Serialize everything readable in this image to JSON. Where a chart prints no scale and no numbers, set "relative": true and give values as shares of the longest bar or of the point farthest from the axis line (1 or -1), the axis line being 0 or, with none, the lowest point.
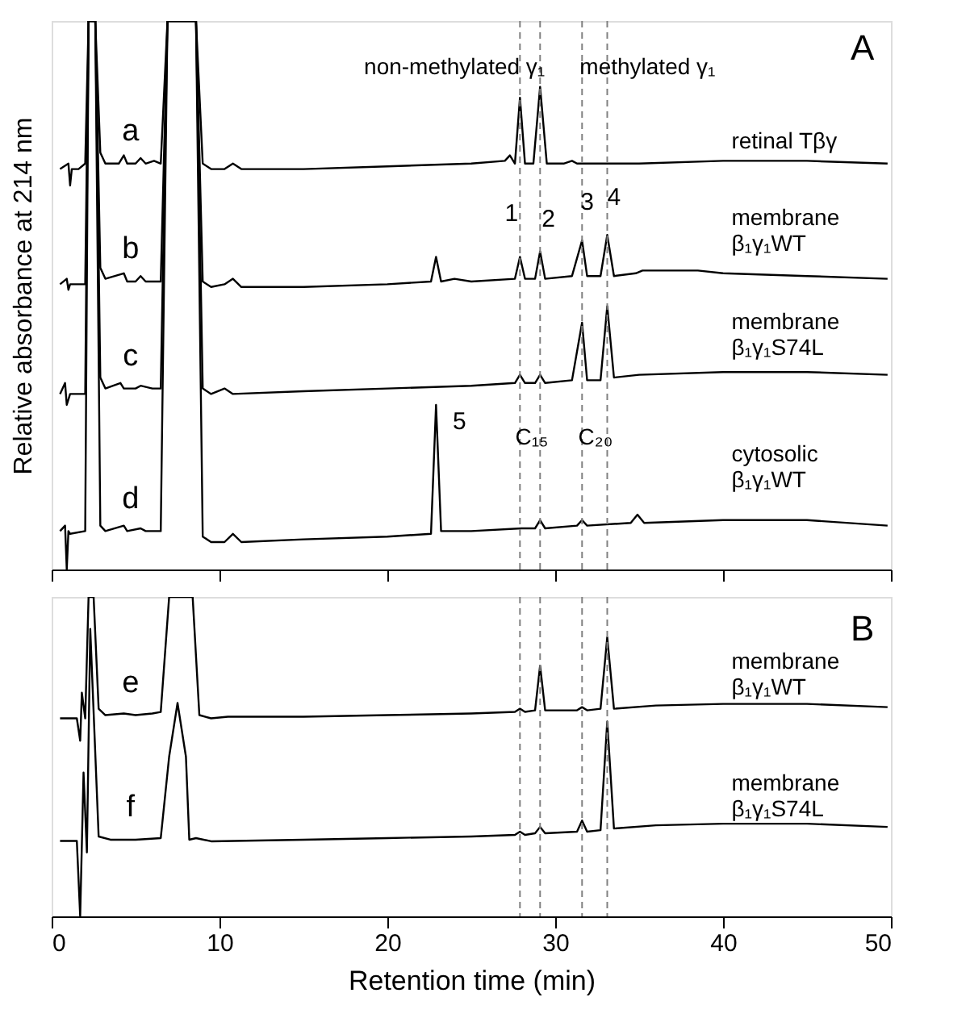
{
  "chart_data": [
    {
      "type": "line",
      "relative": true,
      "ylabel": "Relative absorbance at 214 nm",
      "xlim": [
        0,
        50
      ],
      "xticks": [
        0,
        10,
        20,
        30,
        40,
        50
      ],
      "tick_labels": false,
      "grid": false,
      "line_style": "solid",
      "series": [
        {
          "name": "a",
          "color": "#000000",
          "x": [
            0.5,
            1.0,
            1.1,
            1.2,
            1.6,
            2.0,
            2.2,
            2.6,
            2.9,
            3.2,
            4.0,
            4.3,
            4.5,
            5.0,
            5.3,
            5.6,
            6.1,
            6.5,
            6.9,
            8.6,
            9.0,
            9.5,
            10.3,
            10.8,
            11.3,
            15,
            20,
            25,
            27.0,
            27.3,
            27.6,
            27.9,
            28.2,
            28.7,
            29.1,
            29.5,
            30.5,
            31.0,
            31.3,
            35,
            40,
            45,
            49.8
          ],
          "values": [
            0.73,
            0.74,
            0.7,
            0.73,
            0.73,
            0.74,
            1,
            1,
            0.76,
            0.74,
            0.74,
            0.755,
            0.74,
            0.74,
            0.75,
            0.74,
            0.745,
            0.74,
            1,
            1,
            0.74,
            0.73,
            0.73,
            0.74,
            0.73,
            0.73,
            0.735,
            0.74,
            0.745,
            0.755,
            0.74,
            0.86,
            0.74,
            0.74,
            0.88,
            0.74,
            0.74,
            0.745,
            0.74,
            0.74,
            0.745,
            0.745,
            0.74
          ]
        },
        {
          "name": "b",
          "color": "#000000",
          "x": [
            0.5,
            0.9,
            1.0,
            1.1,
            2.0,
            2.2,
            2.6,
            2.9,
            3.2,
            4.3,
            4.5,
            5.0,
            5.3,
            5.6,
            6.5,
            6.9,
            8.6,
            9.0,
            9.5,
            10.3,
            10.8,
            11.3,
            15,
            20,
            22.6,
            22.9,
            23.2,
            24.0,
            25,
            27.6,
            27.9,
            28.2,
            28.8,
            29.1,
            29.4,
            31.0,
            31.6,
            31.9,
            32.7,
            33.1,
            33.5,
            34.8,
            35.2,
            36.3,
            38.5,
            40,
            45,
            49.8
          ],
          "values": [
            0.52,
            0.53,
            0.51,
            0.52,
            0.52,
            1,
            1,
            0.55,
            0.53,
            0.54,
            0.525,
            0.525,
            0.535,
            0.525,
            0.525,
            1,
            1,
            0.525,
            0.515,
            0.52,
            0.53,
            0.515,
            0.515,
            0.52,
            0.525,
            0.57,
            0.525,
            0.53,
            0.525,
            0.53,
            0.57,
            0.53,
            0.53,
            0.58,
            0.53,
            0.535,
            0.6,
            0.535,
            0.535,
            0.61,
            0.535,
            0.54,
            0.545,
            0.545,
            0.545,
            0.54,
            0.535,
            0.53
          ]
        },
        {
          "name": "c",
          "color": "#000000",
          "x": [
            0.5,
            0.8,
            0.9,
            1.1,
            2.0,
            2.2,
            2.6,
            2.9,
            3.2,
            4.1,
            4.3,
            5.0,
            5.3,
            6.0,
            6.5,
            6.9,
            8.6,
            9.0,
            9.5,
            10.3,
            10.8,
            15,
            20,
            25,
            27.6,
            27.9,
            28.2,
            28.8,
            29.1,
            29.4,
            31.0,
            31.6,
            31.9,
            32.7,
            33.1,
            33.5,
            35,
            40,
            45,
            49.8
          ],
          "values": [
            0.32,
            0.34,
            0.3,
            0.32,
            0.32,
            1,
            1,
            0.35,
            0.33,
            0.34,
            0.33,
            0.33,
            0.335,
            0.33,
            0.33,
            1,
            1,
            0.33,
            0.32,
            0.33,
            0.32,
            0.325,
            0.33,
            0.335,
            0.34,
            0.355,
            0.34,
            0.34,
            0.355,
            0.34,
            0.345,
            0.45,
            0.345,
            0.345,
            0.48,
            0.35,
            0.355,
            0.36,
            0.36,
            0.355
          ]
        },
        {
          "name": "d",
          "color": "#000000",
          "x": [
            0.5,
            0.8,
            0.9,
            1.0,
            1.1,
            2.0,
            2.2,
            2.6,
            2.9,
            3.2,
            4.3,
            4.5,
            5.3,
            5.6,
            6.5,
            6.9,
            8.6,
            9.0,
            9.5,
            10.3,
            10.8,
            11.3,
            15,
            20,
            22.6,
            22.9,
            23.2,
            25,
            28,
            28.8,
            29.1,
            29.4,
            31.3,
            31.6,
            31.9,
            34.5,
            34.9,
            35.3,
            40,
            45,
            49.8
          ],
          "values": [
            0.07,
            0.08,
            0.0,
            0.07,
            0.065,
            0.07,
            1,
            1,
            0.08,
            0.07,
            0.08,
            0.07,
            0.075,
            0.07,
            0.07,
            1,
            1,
            0.06,
            0.05,
            0.05,
            0.065,
            0.05,
            0.055,
            0.06,
            0.065,
            0.3,
            0.07,
            0.07,
            0.075,
            0.075,
            0.09,
            0.075,
            0.08,
            0.09,
            0.08,
            0.085,
            0.1,
            0.085,
            0.09,
            0.09,
            0.08
          ]
        }
      ],
      "ref_lines": [
        {
          "axis": "x",
          "value": 27.9,
          "color": "#808080",
          "line_style": "dashed"
        },
        {
          "axis": "x",
          "value": 29.1,
          "color": "#808080",
          "line_style": "dashed"
        },
        {
          "axis": "x",
          "value": 31.6,
          "color": "#808080",
          "line_style": "dashed"
        },
        {
          "axis": "x",
          "value": 33.1,
          "color": "#808080",
          "line_style": "dashed"
        }
      ],
      "annotations": [
        "A",
        "non-methylated γ₁",
        "methylated γ₁",
        "retinal Tβγ",
        "membrane\nβ₁γ₁WT",
        "membrane\nβ₁γ₁S74L",
        "cytosolic\nβ₁γ₁WT",
        "1",
        "2",
        "3",
        "4",
        "5",
        "C₁₅",
        "C₂₀"
      ]
    },
    {
      "type": "line",
      "relative": true,
      "xlabel": "Retention time (min)",
      "xlim": [
        0,
        50
      ],
      "xticks": [
        0,
        10,
        20,
        30,
        40,
        50
      ],
      "tick_labels": "x",
      "grid": false,
      "line_style": "solid",
      "series": [
        {
          "name": "e",
          "color": "#000000",
          "x": [
            0.5,
            1.5,
            1.7,
            1.8,
            2.0,
            2.2,
            2.5,
            2.8,
            3.2,
            4.3,
            5.0,
            6.0,
            6.5,
            7.0,
            8.4,
            8.8,
            9.5,
            10.5,
            15,
            20,
            25,
            27.6,
            27.9,
            28.2,
            28.8,
            29.1,
            29.4,
            31.3,
            31.6,
            31.9,
            32.7,
            33.1,
            33.5,
            36,
            40,
            45,
            49.8
          ],
          "values": [
            0.62,
            0.62,
            0.55,
            0.7,
            0.62,
            1,
            1,
            0.65,
            0.63,
            0.635,
            0.63,
            0.635,
            0.64,
            1,
            1,
            0.63,
            0.62,
            0.625,
            0.625,
            0.63,
            0.635,
            0.64,
            0.65,
            0.64,
            0.645,
            0.785,
            0.645,
            0.645,
            0.655,
            0.645,
            0.65,
            0.874,
            0.65,
            0.66,
            0.665,
            0.665,
            0.655
          ]
        },
        {
          "name": "f",
          "color": "#000000",
          "x": [
            0.5,
            1.5,
            1.7,
            1.9,
            2.1,
            2.3,
            2.8,
            3.5,
            5,
            6.5,
            7.0,
            7.5,
            8.0,
            8.2,
            8.6,
            9.5,
            15,
            20,
            25,
            27.6,
            27.9,
            28.2,
            28.8,
            29.1,
            29.4,
            31.3,
            31.6,
            31.9,
            32.7,
            33.1,
            33.5,
            36,
            40,
            45,
            49.8
          ],
          "values": [
            0.236,
            0.236,
            0.0,
            0.45,
            0.2,
            0.9,
            0.25,
            0.24,
            0.24,
            0.245,
            0.5,
            0.668,
            0.5,
            0.24,
            0.245,
            0.235,
            0.24,
            0.245,
            0.25,
            0.255,
            0.265,
            0.255,
            0.26,
            0.28,
            0.26,
            0.265,
            0.3,
            0.265,
            0.27,
            0.61,
            0.275,
            0.285,
            0.29,
            0.29,
            0.28
          ]
        }
      ],
      "ref_lines": [
        {
          "axis": "x",
          "value": 27.9,
          "color": "#808080",
          "line_style": "dashed"
        },
        {
          "axis": "x",
          "value": 29.1,
          "color": "#808080",
          "line_style": "dashed"
        },
        {
          "axis": "x",
          "value": 31.6,
          "color": "#808080",
          "line_style": "dashed"
        },
        {
          "axis": "x",
          "value": 33.1,
          "color": "#808080",
          "line_style": "dashed"
        }
      ],
      "annotations": [
        "B",
        "membrane\nβ₁γ₁WT",
        "membrane\nβ₁γ₁S74L"
      ]
    }
  ]
}
